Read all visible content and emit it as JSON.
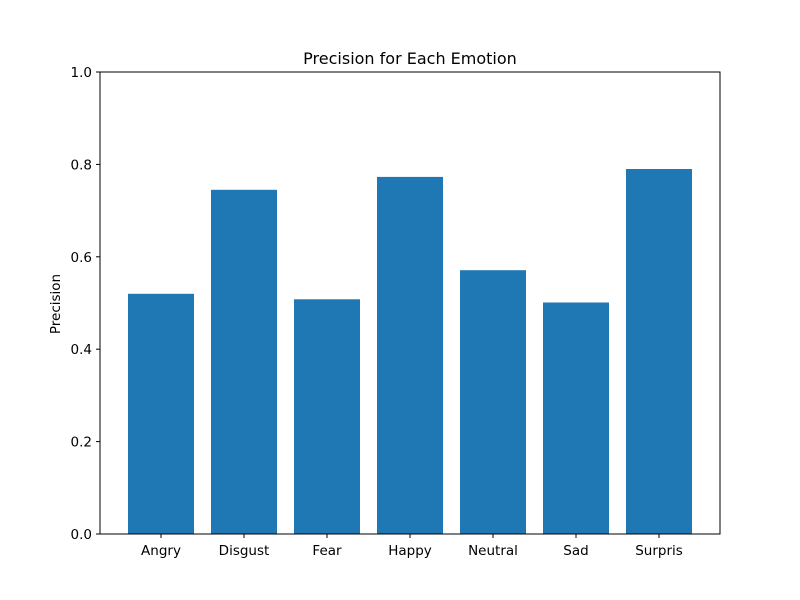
{
  "chart_data": {
    "type": "bar",
    "title": "Precision for Each Emotion",
    "xlabel": "",
    "ylabel": "Precision",
    "categories": [
      "Angry",
      "Disgust",
      "Fear",
      "Happy",
      "Neutral",
      "Sad",
      "Surpris"
    ],
    "values": [
      0.52,
      0.745,
      0.508,
      0.773,
      0.571,
      0.501,
      0.79
    ],
    "ylim": [
      0,
      1.0
    ],
    "yticks": [
      0.0,
      0.2,
      0.4,
      0.6,
      0.8,
      1.0
    ],
    "ytick_labels": [
      "0.0",
      "0.2",
      "0.4",
      "0.6",
      "0.8",
      "1.0"
    ],
    "grid": false,
    "legend": "none",
    "bar_color": "#1f77b4"
  }
}
